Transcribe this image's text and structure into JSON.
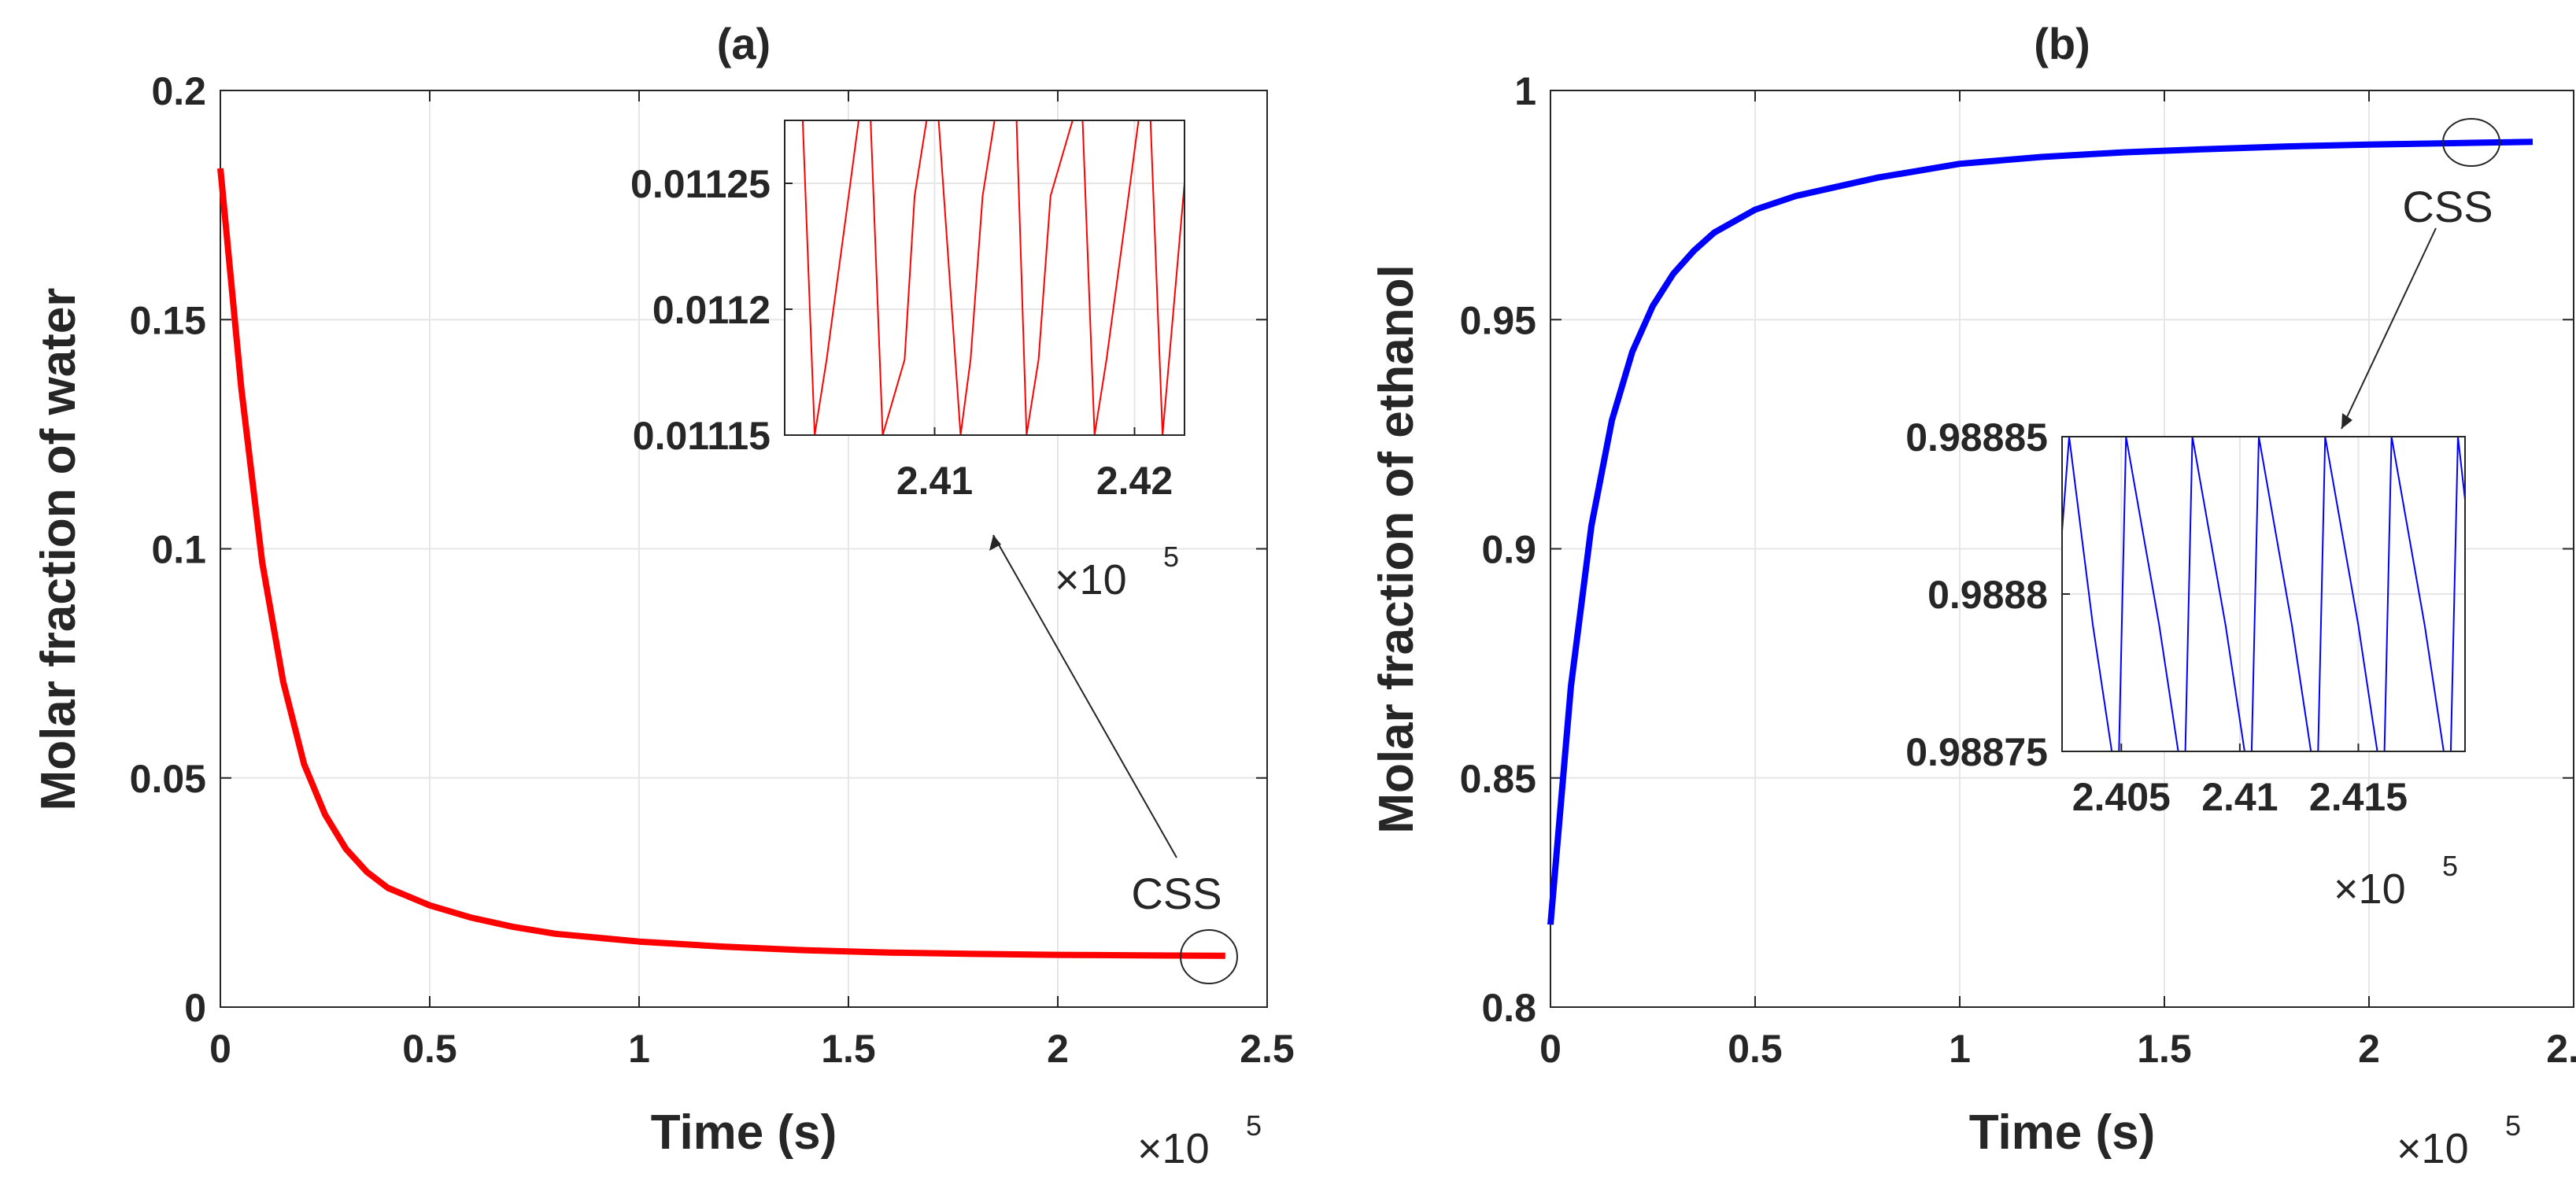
{
  "chart_data": [
    {
      "type": "line",
      "title": "(a)",
      "xlabel": "Time (s)",
      "ylabel": "Molar fraction of water",
      "xlim": [
        0,
        2.5
      ],
      "ylim": [
        0,
        0.2
      ],
      "xticks": [
        "0",
        "0.5",
        "1",
        "1.5",
        "2",
        "2.5"
      ],
      "yticks": [
        "0",
        "0.05",
        "0.1",
        "0.15",
        "0.2"
      ],
      "x_multiplier": {
        "base": "×10",
        "exp": "5"
      },
      "grid": true,
      "color": "#ff0000",
      "series": [
        {
          "name": "water",
          "x": [
            0.0,
            0.05,
            0.1,
            0.15,
            0.2,
            0.25,
            0.3,
            0.35,
            0.4,
            0.5,
            0.6,
            0.7,
            0.8,
            1.0,
            1.2,
            1.4,
            1.6,
            1.8,
            2.0,
            2.2,
            2.4
          ],
          "y": [
            0.183,
            0.135,
            0.097,
            0.071,
            0.053,
            0.042,
            0.0345,
            0.0295,
            0.026,
            0.0222,
            0.0195,
            0.0175,
            0.016,
            0.0143,
            0.0132,
            0.0124,
            0.0119,
            0.0116,
            0.0114,
            0.0113,
            0.0112
          ]
        }
      ],
      "annotation": {
        "text": "CSS"
      },
      "inset": {
        "xlim": [
          2.4025,
          2.4225
        ],
        "ylim": [
          0.01115,
          0.011275
        ],
        "xticks": [
          "2.41",
          "2.42"
        ],
        "yticks": [
          "0.01115",
          "0.0112",
          "0.01125"
        ],
        "x_multiplier": {
          "base": "×10",
          "exp": "5"
        },
        "x": [
          2.4025,
          2.4028,
          2.4034,
          2.404,
          2.4046,
          2.4057,
          2.4062,
          2.4068,
          2.4074,
          2.4085,
          2.409,
          2.4096,
          2.4102,
          2.4113,
          2.4118,
          2.4124,
          2.413,
          2.4141,
          2.4146,
          2.4152,
          2.4158,
          2.4169,
          2.4174,
          2.418,
          2.4186,
          2.4197,
          2.4202,
          2.4208,
          2.4214,
          2.4225
        ],
        "y": [
          0.011275,
          0.011275,
          0.011275,
          0.01115,
          0.01118,
          0.011245,
          0.011275,
          0.011275,
          0.01115,
          0.01118,
          0.011245,
          0.011275,
          0.011275,
          0.01115,
          0.01118,
          0.011245,
          0.011275,
          0.011275,
          0.01115,
          0.01118,
          0.011245,
          0.011275,
          0.011275,
          0.01115,
          0.01118,
          0.011245,
          0.011275,
          0.011275,
          0.01115,
          0.01125
        ]
      }
    },
    {
      "type": "line",
      "title": "(b)",
      "xlabel": "Time (s)",
      "ylabel": "Molar fraction of ethanol",
      "xlim": [
        0,
        2.5
      ],
      "ylim": [
        0.8,
        1.0
      ],
      "xticks": [
        "0",
        "0.5",
        "1",
        "1.5",
        "2",
        "2.5"
      ],
      "yticks": [
        "0.8",
        "0.85",
        "0.9",
        "0.95",
        "1"
      ],
      "x_multiplier": {
        "base": "×10",
        "exp": "5"
      },
      "grid": true,
      "color": "#0000ff",
      "series": [
        {
          "name": "ethanol",
          "x": [
            0.0,
            0.05,
            0.1,
            0.15,
            0.2,
            0.25,
            0.3,
            0.35,
            0.4,
            0.5,
            0.6,
            0.7,
            0.8,
            1.0,
            1.2,
            1.4,
            1.6,
            1.8,
            2.0,
            2.2,
            2.4
          ],
          "y": [
            0.818,
            0.87,
            0.905,
            0.928,
            0.943,
            0.953,
            0.96,
            0.965,
            0.969,
            0.974,
            0.977,
            0.979,
            0.981,
            0.984,
            0.9855,
            0.9865,
            0.9872,
            0.9878,
            0.9882,
            0.9885,
            0.9888
          ]
        }
      ],
      "annotation": {
        "text": "CSS"
      },
      "inset": {
        "xlim": [
          2.4025,
          2.4195
        ],
        "ylim": [
          0.98875,
          0.98885
        ],
        "xticks": [
          "2.405",
          "2.41",
          "2.415"
        ],
        "yticks": [
          "0.98875",
          "0.9888",
          "0.98885"
        ],
        "x_multiplier": {
          "base": "×10",
          "exp": "5"
        },
        "x": [
          2.4025,
          2.4028,
          2.4038,
          2.4044,
          2.4046,
          2.4049,
          2.4052,
          2.4066,
          2.4072,
          2.4074,
          2.4077,
          2.408,
          2.4094,
          2.41,
          2.4102,
          2.4105,
          2.4108,
          2.4122,
          2.4128,
          2.413,
          2.4133,
          2.4136,
          2.415,
          2.4156,
          2.4158,
          2.4161,
          2.4164,
          2.4178,
          2.4184,
          2.4186,
          2.4189,
          2.4192,
          2.4195
        ],
        "y": [
          0.98882,
          0.98885,
          0.98879,
          0.98876,
          0.98875,
          0.98875,
          0.98885,
          0.98879,
          0.98876,
          0.98875,
          0.98875,
          0.98885,
          0.98879,
          0.98876,
          0.98875,
          0.98875,
          0.98885,
          0.98879,
          0.98876,
          0.98875,
          0.98875,
          0.98885,
          0.98879,
          0.98876,
          0.98875,
          0.98875,
          0.98885,
          0.98879,
          0.98876,
          0.98875,
          0.98875,
          0.98885,
          0.98883
        ]
      }
    }
  ]
}
